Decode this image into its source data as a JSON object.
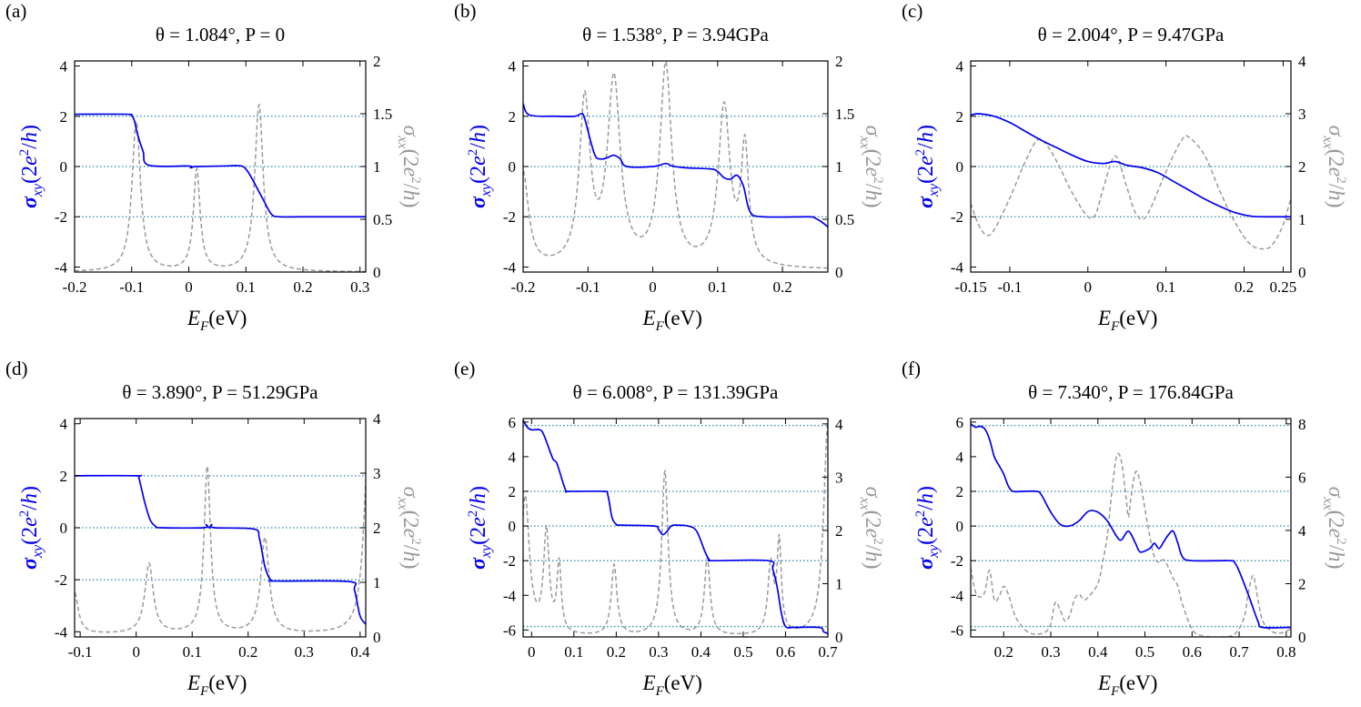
{
  "figure": {
    "colors": {
      "sigma_xy": "#0000ee",
      "sigma_xx": "#9a9a9a",
      "reference_lines": "#2a8ca8",
      "axes": "#000000"
    }
  },
  "chart_data": [
    {
      "panel": "(a)",
      "title": "θ = 1.084°, P = 0",
      "type": "line",
      "xlabel": "E_F(eV)",
      "ylabel": "σxy(2e²/h)",
      "y2label": "σxx(2e²/h)",
      "xlim": [
        -0.2,
        0.31
      ],
      "ylim": [
        -4.2,
        4.2
      ],
      "y2lim": [
        0,
        2
      ],
      "xticks": [
        -0.2,
        -0.1,
        0,
        0.1,
        0.2,
        0.3
      ],
      "xtick_labels": [
        "-0.2",
        "-0.1",
        "0",
        "0.1",
        "0.2",
        "0.3"
      ],
      "yticks": [
        -4,
        -2,
        0,
        2,
        4
      ],
      "ytick_labels": [
        "-4",
        "-2",
        "0",
        "2",
        "4"
      ],
      "y2ticks": [
        0,
        0.5,
        1,
        1.5,
        2
      ],
      "y2tick_labels": [
        "0",
        "0.5",
        "1",
        "1.5",
        "2"
      ],
      "reference_levels": [
        2,
        0,
        -2
      ],
      "series": [
        {
          "name": "σxy",
          "axis": "left",
          "style": "solid",
          "x": [
            -0.2,
            -0.11,
            -0.1,
            -0.095,
            -0.09,
            -0.08,
            -0.07,
            0,
            0.003,
            0.01,
            0.015,
            0.06,
            0.09,
            0.1,
            0.11,
            0.13,
            0.145,
            0.16,
            0.2,
            0.31
          ],
          "y": [
            2.08,
            2.08,
            2.03,
            1.8,
            1.3,
            0.6,
            0.05,
            0.02,
            -0.05,
            0.0,
            0.0,
            0.02,
            0.03,
            -0.1,
            -0.45,
            -1.3,
            -1.9,
            -2.0,
            -2.0,
            -2.0
          ]
        },
        {
          "name": "σxx",
          "axis": "right",
          "style": "dashed",
          "peaks": [
            [
              -0.092,
              1.42,
              0.009
            ],
            [
              0.014,
              0.96,
              0.007
            ],
            [
              0.123,
              1.58,
              0.009
            ]
          ],
          "base": 0.0
        }
      ]
    },
    {
      "panel": "(b)",
      "title": "θ = 1.538°, P = 3.94GPa",
      "type": "line",
      "xlabel": "E_F(eV)",
      "ylabel": "σxy(2e²/h)",
      "y2label": "σxx(2e²/h)",
      "xlim": [
        -0.2,
        0.27
      ],
      "ylim": [
        -4.2,
        4.2
      ],
      "y2lim": [
        0,
        2
      ],
      "xticks": [
        -0.2,
        -0.1,
        0,
        0.1,
        0.2
      ],
      "xtick_labels": [
        "-0.2",
        "-0.1",
        "0",
        "0.1",
        "0.2"
      ],
      "yticks": [
        -4,
        -2,
        0,
        2,
        4
      ],
      "ytick_labels": [
        "-4",
        "-2",
        "0",
        "2",
        "4"
      ],
      "y2ticks": [
        0,
        0.5,
        1,
        1.5,
        2
      ],
      "y2tick_labels": [
        "0",
        "0.5",
        "1",
        "1.5",
        "2"
      ],
      "reference_levels": [
        2,
        0,
        -2
      ],
      "series": [
        {
          "name": "σxy",
          "axis": "left",
          "style": "solid",
          "x": [
            -0.2,
            -0.19,
            -0.15,
            -0.12,
            -0.11,
            -0.105,
            -0.09,
            -0.08,
            -0.07,
            -0.06,
            -0.05,
            -0.04,
            0.0,
            0.02,
            0.03,
            0.05,
            0.09,
            0.1,
            0.11,
            0.12,
            0.13,
            0.14,
            0.15,
            0.17,
            0.24,
            0.25,
            0.26,
            0.27
          ],
          "y": [
            2.5,
            2.05,
            2.0,
            2.0,
            2.1,
            1.9,
            0.5,
            0.3,
            0.35,
            0.45,
            0.3,
            0.0,
            0.0,
            0.12,
            0.02,
            -0.05,
            -0.1,
            -0.2,
            -0.45,
            -0.5,
            -0.35,
            -0.8,
            -1.8,
            -2.0,
            -2.0,
            -2.05,
            -2.2,
            -2.4
          ]
        },
        {
          "name": "σxx",
          "axis": "right",
          "style": "dashed",
          "peaks": [
            [
              -0.105,
              1.55,
              0.01
            ],
            [
              -0.06,
              1.75,
              0.012
            ],
            [
              0.02,
              1.9,
              0.011
            ],
            [
              0.11,
              1.5,
              0.011
            ],
            [
              0.142,
              1.1,
              0.007
            ],
            [
              -0.2,
              0.9,
              0.01
            ]
          ],
          "base": 0.02
        }
      ]
    },
    {
      "panel": "(c)",
      "title": "θ = 2.004°, P = 9.47GPa",
      "type": "line",
      "xlabel": "E_F(eV)",
      "ylabel": "σxy(2e²/h)",
      "y2label": "σxx(2e²/h)",
      "xlim": [
        -0.15,
        0.26
      ],
      "ylim": [
        -4.2,
        4.2
      ],
      "y2lim": [
        0,
        4
      ],
      "xticks": [
        -0.15,
        -0.1,
        0,
        0.1,
        0.2,
        0.25
      ],
      "xtick_labels": [
        "-0.15",
        "-0.1",
        "0",
        "0.1",
        "0.2",
        "0.25"
      ],
      "yticks": [
        -4,
        -2,
        0,
        2,
        4
      ],
      "ytick_labels": [
        "-4",
        "-2",
        "0",
        "2",
        "4"
      ],
      "y2ticks": [
        0,
        1,
        2,
        3,
        4
      ],
      "y2tick_labels": [
        "0",
        "1",
        "2",
        "3",
        "4"
      ],
      "reference_levels": [
        2,
        0,
        -2
      ],
      "series": [
        {
          "name": "σxy",
          "axis": "left",
          "style": "solid",
          "x": [
            -0.15,
            -0.14,
            -0.12,
            -0.1,
            -0.08,
            -0.06,
            -0.04,
            -0.02,
            0.0,
            0.02,
            0.035,
            0.05,
            0.07,
            0.09,
            0.11,
            0.13,
            0.15,
            0.17,
            0.19,
            0.21,
            0.23,
            0.25,
            0.26
          ],
          "y": [
            2.05,
            2.1,
            2.0,
            1.75,
            1.4,
            1.05,
            0.75,
            0.45,
            0.2,
            0.12,
            0.2,
            0.05,
            -0.05,
            -0.25,
            -0.6,
            -0.95,
            -1.3,
            -1.6,
            -1.85,
            -1.98,
            -2.0,
            -2.0,
            -2.0
          ],
          "smooth": true
        },
        {
          "name": "σxx",
          "axis": "right",
          "style": "dashed",
          "x": [
            -0.15,
            -0.14,
            -0.13,
            -0.12,
            -0.1,
            -0.08,
            -0.065,
            -0.055,
            -0.04,
            -0.02,
            0.0,
            0.01,
            0.02,
            0.035,
            0.05,
            0.06,
            0.07,
            0.08,
            0.1,
            0.12,
            0.13,
            0.15,
            0.17,
            0.19,
            0.21,
            0.23,
            0.24,
            0.25,
            0.26
          ],
          "y": [
            1.3,
            0.9,
            0.7,
            0.8,
            1.4,
            2.1,
            2.5,
            2.45,
            2.1,
            1.5,
            1.05,
            1.1,
            1.6,
            2.2,
            1.6,
            1.15,
            1.0,
            1.2,
            1.9,
            2.5,
            2.55,
            2.2,
            1.5,
            0.9,
            0.5,
            0.45,
            0.6,
            0.9,
            1.4
          ],
          "smooth": true
        }
      ]
    },
    {
      "panel": "(d)",
      "title": "θ = 3.890°, P = 51.29GPa",
      "type": "line",
      "xlabel": "E_F(eV)",
      "ylabel": "σxy(2e²/h)",
      "y2label": "σxx(2e²/h)",
      "xlim": [
        -0.11,
        0.41
      ],
      "ylim": [
        -4.2,
        4.2
      ],
      "y2lim": [
        0,
        4
      ],
      "xticks": [
        -0.1,
        0,
        0.1,
        0.2,
        0.3,
        0.4
      ],
      "xtick_labels": [
        "-0.1",
        "0",
        "0.1",
        "0.2",
        "0.3",
        "0.4"
      ],
      "yticks": [
        -4,
        -2,
        0,
        2,
        4
      ],
      "ytick_labels": [
        "-4",
        "-2",
        "0",
        "2",
        "4"
      ],
      "y2ticks": [
        0,
        1,
        2,
        3,
        4
      ],
      "y2tick_labels": [
        "0",
        "1",
        "2",
        "3",
        "4"
      ],
      "reference_levels": [
        2,
        0,
        -2
      ],
      "series": [
        {
          "name": "σxy",
          "axis": "left",
          "style": "solid",
          "x": [
            -0.11,
            0.0,
            0.005,
            0.015,
            0.025,
            0.035,
            0.045,
            0.12,
            0.125,
            0.13,
            0.135,
            0.14,
            0.21,
            0.22,
            0.23,
            0.24,
            0.25,
            0.38,
            0.39,
            0.4,
            0.41
          ],
          "y": [
            2.0,
            2.0,
            1.9,
            1.0,
            0.3,
            0.05,
            0.0,
            0.0,
            0.12,
            0.0,
            0.12,
            0.0,
            -0.05,
            -0.4,
            -1.5,
            -2.0,
            -2.05,
            -2.07,
            -2.4,
            -3.4,
            -3.7
          ]
        },
        {
          "name": "σxx",
          "axis": "right",
          "style": "dashed",
          "peaks": [
            [
              0.023,
              1.28,
              0.009
            ],
            [
              0.127,
              3.05,
              0.007
            ],
            [
              0.23,
              1.75,
              0.009
            ],
            [
              0.415,
              3.5,
              0.01
            ],
            [
              -0.11,
              0.75,
              0.008
            ]
          ],
          "base": 0.05
        }
      ]
    },
    {
      "panel": "(e)",
      "title": "θ = 6.008°, P = 131.39GPa",
      "type": "line",
      "xlabel": "E_F(eV)",
      "ylabel": "σxy(2e²/h)",
      "y2label": "σxx(2e²/h)",
      "xlim": [
        -0.02,
        0.7
      ],
      "ylim": [
        -6.4,
        6.2
      ],
      "y2lim": [
        0,
        4.1
      ],
      "xticks": [
        0,
        0.1,
        0.2,
        0.3,
        0.4,
        0.5,
        0.6,
        0.7
      ],
      "xtick_labels": [
        "0",
        "0.1",
        "0.2",
        "0.3",
        "0.4",
        "0.5",
        "0.6",
        "0.7"
      ],
      "yticks": [
        -6,
        -4,
        -2,
        0,
        2,
        4,
        6
      ],
      "ytick_labels": [
        "-6",
        "-4",
        "-2",
        "0",
        "2",
        "4",
        "6"
      ],
      "y2ticks": [
        0,
        1,
        2,
        3,
        4
      ],
      "y2tick_labels": [
        "0",
        "1",
        "2",
        "3",
        "4"
      ],
      "reference_levels": [
        5.8,
        2,
        0,
        -2,
        -5.8
      ],
      "series": [
        {
          "name": "σxy",
          "axis": "left",
          "style": "solid",
          "x": [
            -0.02,
            -0.01,
            0.0,
            0.02,
            0.03,
            0.05,
            0.06,
            0.08,
            0.09,
            0.17,
            0.18,
            0.19,
            0.2,
            0.21,
            0.29,
            0.3,
            0.31,
            0.32,
            0.33,
            0.34,
            0.37,
            0.39,
            0.41,
            0.42,
            0.43,
            0.56,
            0.57,
            0.58,
            0.59,
            0.6,
            0.62,
            0.68,
            0.69,
            0.7
          ],
          "y": [
            6.1,
            5.7,
            5.55,
            5.55,
            5.2,
            3.9,
            3.6,
            2.1,
            2.0,
            2.0,
            1.8,
            0.5,
            0.1,
            0.05,
            0.0,
            -0.2,
            -0.5,
            -0.3,
            0.0,
            0.05,
            0.0,
            -0.3,
            -1.5,
            -1.95,
            -2.0,
            -2.0,
            -2.5,
            -3.5,
            -5.0,
            -5.8,
            -5.85,
            -5.85,
            -6.1,
            -6.2
          ]
        },
        {
          "name": "σxx",
          "axis": "right",
          "style": "dashed",
          "peaks": [
            [
              -0.015,
              2.6,
              0.012
            ],
            [
              0.035,
              1.9,
              0.008
            ],
            [
              0.065,
              1.3,
              0.006
            ],
            [
              0.195,
              1.33,
              0.008
            ],
            [
              0.315,
              3.1,
              0.009
            ],
            [
              0.415,
              1.45,
              0.008
            ],
            [
              0.565,
              1.3,
              0.008
            ],
            [
              0.585,
              1.7,
              0.006
            ],
            [
              0.7,
              4.0,
              0.012
            ]
          ],
          "base": 0.0
        }
      ]
    },
    {
      "panel": "(f)",
      "title": "θ = 7.340°, P = 176.84GPa",
      "type": "line",
      "xlabel": "E_F(eV)",
      "ylabel": "σxy(2e²/h)",
      "y2label": "σxx(2e²/h)",
      "xlim": [
        0.13,
        0.81
      ],
      "ylim": [
        -6.4,
        6.2
      ],
      "y2lim": [
        0,
        8.2
      ],
      "xticks": [
        0.2,
        0.3,
        0.4,
        0.5,
        0.6,
        0.7,
        0.8
      ],
      "xtick_labels": [
        "0.2",
        "0.3",
        "0.4",
        "0.5",
        "0.6",
        "0.7",
        "0.8"
      ],
      "yticks": [
        -6,
        -4,
        -2,
        0,
        2,
        4,
        6
      ],
      "ytick_labels": [
        "-6",
        "-4",
        "-2",
        "0",
        "2",
        "4",
        "6"
      ],
      "y2ticks": [
        0,
        2,
        4,
        6,
        8
      ],
      "y2tick_labels": [
        "0",
        "2",
        "4",
        "6",
        "8"
      ],
      "reference_levels": [
        5.8,
        2,
        0,
        -2,
        -5.8
      ],
      "series": [
        {
          "name": "σxy",
          "axis": "left",
          "style": "solid",
          "x": [
            0.13,
            0.14,
            0.15,
            0.16,
            0.17,
            0.18,
            0.19,
            0.2,
            0.21,
            0.22,
            0.24,
            0.27,
            0.28,
            0.3,
            0.32,
            0.34,
            0.36,
            0.38,
            0.4,
            0.42,
            0.44,
            0.45,
            0.465,
            0.48,
            0.49,
            0.51,
            0.52,
            0.53,
            0.54,
            0.55,
            0.56,
            0.57,
            0.58,
            0.6,
            0.68,
            0.69,
            0.7,
            0.72,
            0.74,
            0.75,
            0.81
          ],
          "y": [
            5.9,
            5.7,
            5.75,
            5.6,
            5.0,
            4.0,
            3.5,
            3.0,
            2.3,
            2.0,
            2.0,
            2.0,
            1.8,
            0.8,
            0.1,
            0.0,
            0.3,
            0.85,
            0.8,
            0.3,
            -0.6,
            -0.8,
            -0.3,
            -1.0,
            -1.5,
            -1.3,
            -1.0,
            -1.3,
            -0.9,
            -0.5,
            -0.3,
            -1.0,
            -1.8,
            -2.0,
            -2.0,
            -2.1,
            -2.6,
            -4.0,
            -5.5,
            -5.85,
            -5.85
          ]
        },
        {
          "name": "σxx",
          "axis": "right",
          "style": "dashed",
          "x": [
            0.13,
            0.14,
            0.15,
            0.16,
            0.17,
            0.18,
            0.19,
            0.2,
            0.21,
            0.22,
            0.23,
            0.25,
            0.27,
            0.29,
            0.3,
            0.31,
            0.32,
            0.33,
            0.34,
            0.35,
            0.36,
            0.37,
            0.38,
            0.4,
            0.41,
            0.42,
            0.43,
            0.44,
            0.45,
            0.46,
            0.465,
            0.47,
            0.48,
            0.49,
            0.5,
            0.51,
            0.52,
            0.53,
            0.54,
            0.55,
            0.56,
            0.57,
            0.58,
            0.6,
            0.62,
            0.66,
            0.69,
            0.71,
            0.72,
            0.73,
            0.74,
            0.75,
            0.77,
            0.79,
            0.81
          ],
          "y": [
            2.6,
            1.7,
            1.5,
            1.7,
            2.5,
            1.4,
            1.5,
            1.9,
            1.6,
            1.0,
            0.6,
            0.2,
            0.1,
            0.2,
            0.5,
            1.3,
            1.0,
            0.6,
            0.8,
            1.4,
            1.6,
            1.4,
            1.5,
            2.0,
            2.8,
            3.8,
            5.5,
            6.8,
            6.6,
            5.2,
            4.5,
            5.2,
            6.2,
            5.8,
            4.8,
            3.8,
            3.0,
            2.8,
            2.9,
            2.6,
            2.2,
            1.9,
            1.2,
            0.3,
            0.05,
            0.0,
            0.1,
            0.7,
            1.7,
            2.3,
            1.4,
            0.6,
            0.2,
            0.15,
            0.3
          ],
          "smooth": true
        }
      ]
    }
  ]
}
